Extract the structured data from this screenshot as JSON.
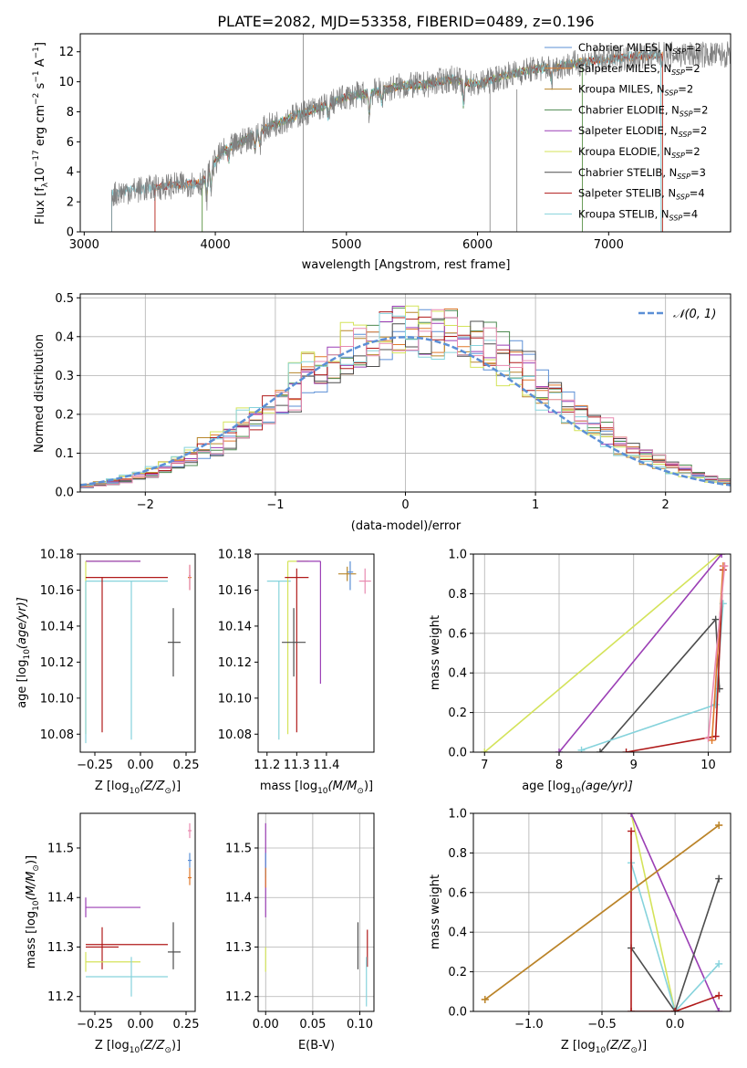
{
  "title": "PLATE=2082, MJD=53358, FIBERID=0489, z=0.196",
  "colors": {
    "chabrier_miles": "#5b8fd6",
    "salpeter_miles": "#e0782a",
    "kroupa_miles": "#b8862b",
    "chabrier_elodie": "#4e8a50",
    "salpeter_elodie": "#9b3fb5",
    "kroupa_elodie": "#d4e35a",
    "chabrier_stelib": "#4d4d4d",
    "salpeter_stelib": "#b01a1a",
    "kroupa_stelib": "#86d3dc",
    "pink": "#e88ab0",
    "data": "#808080",
    "normal": "#5b8fd6"
  },
  "chart_data": [
    {
      "id": "spectrum",
      "type": "line",
      "title": "PLATE=2082, MJD=53358, FIBERID=0489, z=0.196",
      "xlabel": "wavelength [Angstrom, rest frame]",
      "ylabel": "Flux [f",
      "ylabel_sub": "λ",
      "ylabel_rest": "10",
      "ylabel_exp": "−17",
      "ylabel_tail": " erg cm",
      "ylabel_exp2": "−2",
      "ylabel_s": " s",
      "ylabel_exp3": "−1",
      "ylabel_A": " A",
      "ylabel_exp4": "−1",
      "ylabel_end": "]",
      "xlim": [
        2970,
        7930
      ],
      "ylim": [
        0,
        13.2
      ],
      "xticks": [
        "3000",
        "4000",
        "5000",
        "6000",
        "7000"
      ],
      "xtick_values": [
        3000,
        4000,
        5000,
        6000,
        7000
      ],
      "yticks": [
        "0",
        "2",
        "4",
        "6",
        "8",
        "10",
        "12"
      ],
      "ytick_values": [
        0,
        2,
        4,
        6,
        8,
        10,
        12
      ],
      "continuum": {
        "x": [
          3210,
          3300,
          3400,
          3500,
          3600,
          3700,
          3800,
          3900,
          3950,
          4050,
          4200,
          4400,
          4600,
          4800,
          5000,
          5200,
          5400,
          5600,
          5800,
          6000,
          6200,
          6400,
          6600,
          6800,
          7000,
          7200,
          7400
        ],
        "y": [
          2.5,
          2.7,
          2.8,
          2.9,
          3.0,
          3.1,
          3.2,
          3.3,
          4.0,
          5.3,
          6.0,
          7.0,
          7.7,
          8.3,
          9.0,
          9.3,
          9.7,
          9.8,
          10.2,
          9.8,
          10.4,
          10.8,
          11.0,
          11.3,
          11.5,
          11.7,
          11.8
        ]
      },
      "legend": [
        {
          "imf": "Chabrier",
          "lib": "MILES",
          "n": "2"
        },
        {
          "imf": "Salpeter",
          "lib": "MILES",
          "n": "2"
        },
        {
          "imf": "Kroupa",
          "lib": "MILES",
          "n": "2"
        },
        {
          "imf": "Chabrier",
          "lib": "ELODIE",
          "n": "2"
        },
        {
          "imf": "Salpeter",
          "lib": "ELODIE",
          "n": "2"
        },
        {
          "imf": "Kroupa",
          "lib": "ELODIE",
          "n": "2"
        },
        {
          "imf": "Chabrier",
          "lib": "STELIB",
          "n": "3"
        },
        {
          "imf": "Salpeter",
          "lib": "STELIB",
          "n": "4"
        },
        {
          "imf": "Kroupa",
          "lib": "STELIB",
          "n": "4"
        }
      ],
      "legend_sep": ", N",
      "legend_sub": "SSP",
      "legend_eq": "=",
      "legend_position": "right"
    },
    {
      "id": "residuals",
      "type": "line",
      "xlabel": "(data-model)/error",
      "ylabel": "Normed distribution",
      "xlim": [
        -2.5,
        2.5
      ],
      "ylim": [
        0,
        0.51
      ],
      "xticks": [
        "−2",
        "−1",
        "0",
        "1",
        "2"
      ],
      "xtick_values": [
        -2,
        -1,
        0,
        1,
        2
      ],
      "yticks": [
        "0.0",
        "0.1",
        "0.2",
        "0.3",
        "0.4",
        "0.5"
      ],
      "ytick_values": [
        0,
        0.1,
        0.2,
        0.3,
        0.4,
        0.5
      ],
      "bin_width": 0.1,
      "grid": true,
      "legend_label": "𝒩(0, 1)",
      "legend_position": "top-right"
    },
    {
      "id": "age_vs_z",
      "type": "scatter",
      "xlabel": "Z [log",
      "xlabel_sub": "10",
      "xlabel_rest": "(Z/Z",
      "xlabel_sun": "⊙",
      "xlabel_end": ")]",
      "ylabel": "age  [log",
      "ylabel_sub": "10",
      "ylabel_rest": "(age/yr)]",
      "xlim": [
        -0.33,
        0.3
      ],
      "ylim": [
        10.07,
        10.18
      ],
      "xticks": [
        "−0.25",
        "0.00",
        "0.25"
      ],
      "xtick_values": [
        -0.25,
        0,
        0.25
      ],
      "yticks": [
        "10.08",
        "10.10",
        "10.12",
        "10.14",
        "10.16",
        "10.18"
      ],
      "ytick_values": [
        10.08,
        10.1,
        10.12,
        10.14,
        10.16,
        10.18
      ],
      "points": [
        {
          "c": "kroupa_elodie",
          "x": -0.3,
          "y": 10.176,
          "xl": -0.3,
          "xh": 0.0,
          "yl": 10.176,
          "yh": 10.176
        },
        {
          "c": "salpeter_elodie",
          "x": -0.3,
          "y": 10.176,
          "xl": -0.3,
          "xh": 0.0,
          "yl": 10.176,
          "yh": 10.176
        },
        {
          "c": "kroupa_elodie",
          "x": -0.3,
          "y": 10.176,
          "xl": -0.3,
          "xh": -0.3,
          "yl": 10.08,
          "yh": 10.176
        },
        {
          "c": "kroupa_stelib",
          "x": -0.3,
          "y": 10.165,
          "xl": -0.3,
          "xh": 0.15,
          "yl": 10.165,
          "yh": 10.165
        },
        {
          "c": "kroupa_stelib",
          "x": -0.3,
          "y": 10.165,
          "xl": -0.3,
          "xh": -0.3,
          "yl": 10.075,
          "yh": 10.165
        },
        {
          "c": "salpeter_stelib",
          "x": -0.21,
          "y": 10.167,
          "xl": -0.3,
          "xh": 0.15,
          "yl": 10.081,
          "yh": 10.167
        },
        {
          "c": "kroupa_stelib",
          "x": -0.05,
          "y": 10.165,
          "xl": -0.05,
          "xh": -0.05,
          "yl": 10.077,
          "yh": 10.165
        },
        {
          "c": "chabrier_stelib",
          "x": 0.18,
          "y": 10.131,
          "xl": 0.15,
          "xh": 0.22,
          "yl": 10.112,
          "yh": 10.15
        },
        {
          "c": "salpeter_miles",
          "x": 0.27,
          "y": 10.167,
          "xl": 0.26,
          "xh": 0.28,
          "yl": 10.16,
          "yh": 10.174
        },
        {
          "c": "pink",
          "x": 0.27,
          "y": 10.168,
          "xl": 0.265,
          "xh": 0.275,
          "yl": 10.16,
          "yh": 10.174
        }
      ]
    },
    {
      "id": "age_vs_mass",
      "type": "scatter",
      "xlabel": "mass [log",
      "xlabel_sub": "10",
      "xlabel_rest": "(M/M",
      "xlabel_sun": "⊙",
      "xlabel_end": ")]",
      "xlim": [
        11.17,
        11.56
      ],
      "ylim": [
        10.07,
        10.18
      ],
      "xticks": [
        "11.2",
        "11.3",
        "11.4"
      ],
      "xtick_values": [
        11.2,
        11.3,
        11.4
      ],
      "yticks": [
        "10.08",
        "10.10",
        "10.12",
        "10.14",
        "10.16",
        "10.18"
      ],
      "ytick_values": [
        10.08,
        10.1,
        10.12,
        10.14,
        10.16,
        10.18
      ],
      "points": [
        {
          "c": "kroupa_stelib",
          "x": 11.24,
          "y": 10.165,
          "xl": 11.2,
          "xh": 11.28,
          "yl": 10.077,
          "yh": 10.165
        },
        {
          "c": "kroupa_elodie",
          "x": 11.27,
          "y": 10.176,
          "xl": 11.27,
          "xh": 11.34,
          "yl": 10.08,
          "yh": 10.176
        },
        {
          "c": "salpeter_elodie",
          "x": 11.38,
          "y": 10.176,
          "xl": 11.3,
          "xh": 11.38,
          "yl": 10.108,
          "yh": 10.176
        },
        {
          "c": "salpeter_stelib",
          "x": 11.3,
          "y": 10.167,
          "xl": 11.26,
          "xh": 11.34,
          "yl": 10.081,
          "yh": 10.172
        },
        {
          "c": "chabrier_stelib",
          "x": 11.29,
          "y": 10.131,
          "xl": 11.25,
          "xh": 11.33,
          "yl": 10.112,
          "yh": 10.15
        },
        {
          "c": "kroupa_miles",
          "x": 11.47,
          "y": 10.169,
          "xl": 11.44,
          "xh": 11.5,
          "yl": 10.165,
          "yh": 10.173
        },
        {
          "c": "chabrier_miles",
          "x": 11.48,
          "y": 10.17,
          "xl": 11.47,
          "xh": 11.49,
          "yl": 10.16,
          "yh": 10.176
        },
        {
          "c": "pink",
          "x": 11.53,
          "y": 10.165,
          "xl": 11.51,
          "xh": 11.55,
          "yl": 10.158,
          "yh": 10.172
        }
      ]
    },
    {
      "id": "weight_vs_age",
      "type": "line",
      "xlabel": "age  [log",
      "xlabel_sub": "10",
      "xlabel_rest": "(age/yr)]",
      "ylabel": "mass weight",
      "xlim": [
        6.85,
        10.3
      ],
      "ylim": [
        0,
        1
      ],
      "xticks": [
        "7",
        "8",
        "9",
        "10"
      ],
      "xtick_values": [
        7,
        8,
        9,
        10
      ],
      "yticks": [
        "0.0",
        "0.2",
        "0.4",
        "0.6",
        "0.8",
        "1.0"
      ],
      "ytick_values": [
        0,
        0.2,
        0.4,
        0.6,
        0.8,
        1.0
      ],
      "grid": true,
      "series": [
        {
          "c": "kroupa_elodie",
          "x": [
            7.0,
            10.15
          ],
          "y": [
            0.0,
            1.0
          ]
        },
        {
          "c": "salpeter_elodie",
          "x": [
            8.0,
            10.18
          ],
          "y": [
            0.0,
            1.0
          ]
        },
        {
          "c": "chabrier_stelib",
          "x": [
            8.55,
            10.1,
            10.15
          ],
          "y": [
            0.0,
            0.67,
            0.32
          ]
        },
        {
          "c": "kroupa_stelib",
          "x": [
            8.3,
            10.1,
            10.2
          ],
          "y": [
            0.01,
            0.24,
            0.75
          ]
        },
        {
          "c": "salpeter_stelib",
          "x": [
            8.9,
            10.1,
            10.2
          ],
          "y": [
            0.0,
            0.08,
            0.92
          ]
        },
        {
          "c": "salpeter_miles",
          "x": [
            10.05,
            10.2
          ],
          "y": [
            0.06,
            0.94
          ]
        },
        {
          "c": "pink",
          "x": [
            10.0,
            10.22
          ],
          "y": [
            0.07,
            0.94
          ]
        }
      ]
    },
    {
      "id": "mass_vs_z",
      "type": "scatter",
      "xlabel": "Z [log",
      "xlabel_sub": "10",
      "xlabel_rest": "(Z/Z",
      "xlabel_sun": "⊙",
      "xlabel_end": ")]",
      "ylabel": "mass [log",
      "ylabel_sub": "10",
      "ylabel_rest": "(M/M",
      "ylabel_sun": "⊙",
      "ylabel_end": ")]",
      "xlim": [
        -0.33,
        0.3
      ],
      "ylim": [
        11.17,
        11.57
      ],
      "xticks": [
        "−0.25",
        "0.00",
        "0.25"
      ],
      "xtick_values": [
        -0.25,
        0,
        0.25
      ],
      "yticks": [
        "11.2",
        "11.3",
        "11.4",
        "11.5"
      ],
      "ytick_values": [
        11.2,
        11.3,
        11.4,
        11.5
      ],
      "points": [
        {
          "c": "salpeter_elodie",
          "x": -0.3,
          "y": 11.38,
          "xl": -0.3,
          "xh": 0.0,
          "yl": 11.36,
          "yh": 11.4
        },
        {
          "c": "salpeter_stelib",
          "x": -0.3,
          "y": 11.305,
          "xl": -0.3,
          "xh": 0.15,
          "yl": 11.305,
          "yh": 11.305
        },
        {
          "c": "salpeter_stelib",
          "x": -0.21,
          "y": 11.3,
          "xl": -0.3,
          "xh": -0.12,
          "yl": 11.255,
          "yh": 11.34
        },
        {
          "c": "kroupa_elodie",
          "x": -0.3,
          "y": 11.27,
          "xl": -0.3,
          "xh": 0.0,
          "yl": 11.25,
          "yh": 11.29
        },
        {
          "c": "kroupa_stelib",
          "x": -0.05,
          "y": 11.24,
          "xl": -0.3,
          "xh": 0.15,
          "yl": 11.2,
          "yh": 11.28
        },
        {
          "c": "chabrier_stelib",
          "x": 0.18,
          "y": 11.29,
          "xl": 0.15,
          "xh": 0.22,
          "yl": 11.255,
          "yh": 11.35
        },
        {
          "c": "chabrier_miles",
          "x": 0.27,
          "y": 11.475,
          "xl": 0.26,
          "xh": 0.28,
          "yl": 11.46,
          "yh": 11.49
        },
        {
          "c": "salpeter_miles",
          "x": 0.27,
          "y": 11.44,
          "xl": 0.26,
          "xh": 0.28,
          "yl": 11.425,
          "yh": 11.46
        },
        {
          "c": "pink",
          "x": 0.27,
          "y": 11.535,
          "xl": 0.26,
          "xh": 0.28,
          "yl": 11.52,
          "yh": 11.55
        }
      ]
    },
    {
      "id": "mass_vs_ebv",
      "type": "scatter",
      "xlabel": "E(B-V)",
      "xlim": [
        -0.008,
        0.115
      ],
      "ylim": [
        11.17,
        11.57
      ],
      "xticks": [
        "0.00",
        "0.05",
        "0.10"
      ],
      "xtick_values": [
        0,
        0.05,
        0.1
      ],
      "yticks": [
        "11.2",
        "11.3",
        "11.4",
        "11.5"
      ],
      "ytick_values": [
        11.2,
        11.3,
        11.4,
        11.5
      ],
      "grid": true,
      "points": [
        {
          "c": "salpeter_elodie",
          "x": 0.0,
          "y": 11.38,
          "xl": 0.0,
          "xh": 0.0,
          "yl": 11.36,
          "yh": 11.55
        },
        {
          "c": "chabrier_miles",
          "x": 0.0,
          "y": 11.47,
          "xl": 0.0,
          "xh": 0.0,
          "yl": 11.44,
          "yh": 11.49
        },
        {
          "c": "salpeter_miles",
          "x": 0.0,
          "y": 11.44,
          "xl": 0.0,
          "xh": 0.0,
          "yl": 11.42,
          "yh": 11.46
        },
        {
          "c": "kroupa_elodie",
          "x": 0.0,
          "y": 11.27,
          "xl": 0.0,
          "xh": 0.0,
          "yl": 11.25,
          "yh": 11.3
        },
        {
          "c": "chabrier_stelib",
          "x": 0.098,
          "y": 11.29,
          "xl": 0.098,
          "xh": 0.098,
          "yl": 11.255,
          "yh": 11.35
        },
        {
          "c": "salpeter_stelib",
          "x": 0.108,
          "y": 11.3,
          "xl": 0.108,
          "xh": 0.108,
          "yl": 11.26,
          "yh": 11.335
        },
        {
          "c": "kroupa_stelib",
          "x": 0.107,
          "y": 11.24,
          "xl": 0.107,
          "xh": 0.107,
          "yl": 11.18,
          "yh": 11.28
        }
      ]
    },
    {
      "id": "weight_vs_z",
      "type": "line",
      "xlabel": "Z [log",
      "xlabel_sub": "10",
      "xlabel_rest": "(Z/Z",
      "xlabel_sun": "⊙",
      "xlabel_end": ")]",
      "ylabel": "mass weight",
      "xlim": [
        -1.38,
        0.38
      ],
      "ylim": [
        0,
        1
      ],
      "xticks": [
        "−1.0",
        "−0.5",
        "0.0"
      ],
      "xtick_values": [
        -1.0,
        -0.5,
        0.0
      ],
      "yticks": [
        "0.0",
        "0.2",
        "0.4",
        "0.6",
        "0.8",
        "1.0"
      ],
      "ytick_values": [
        0,
        0.2,
        0.4,
        0.6,
        0.8,
        1.0
      ],
      "grid": true,
      "series": [
        {
          "c": "kroupa_elodie",
          "x": [
            -0.3,
            0.0
          ],
          "y": [
            1.0,
            0.0
          ]
        },
        {
          "c": "salpeter_elodie",
          "x": [
            -0.3,
            0.3
          ],
          "y": [
            1.0,
            0.0
          ]
        },
        {
          "c": "kroupa_stelib",
          "x": [
            -0.3,
            0.0,
            0.3
          ],
          "y": [
            0.75,
            0.0,
            0.24
          ]
        },
        {
          "c": "chabrier_stelib",
          "x": [
            -0.3,
            0.0,
            0.3
          ],
          "y": [
            0.32,
            0.0,
            0.67
          ]
        },
        {
          "c": "salpeter_stelib",
          "x": [
            -0.3,
            -0.3,
            0.0,
            0.3
          ],
          "y": [
            0.91,
            0.0,
            0.0,
            0.08
          ]
        },
        {
          "c": "salpeter_miles",
          "x": [
            -1.3,
            0.3
          ],
          "y": [
            0.06,
            0.94
          ]
        },
        {
          "c": "kroupa_miles",
          "x": [
            -1.3,
            0.3
          ],
          "y": [
            0.06,
            0.94
          ]
        }
      ]
    }
  ]
}
